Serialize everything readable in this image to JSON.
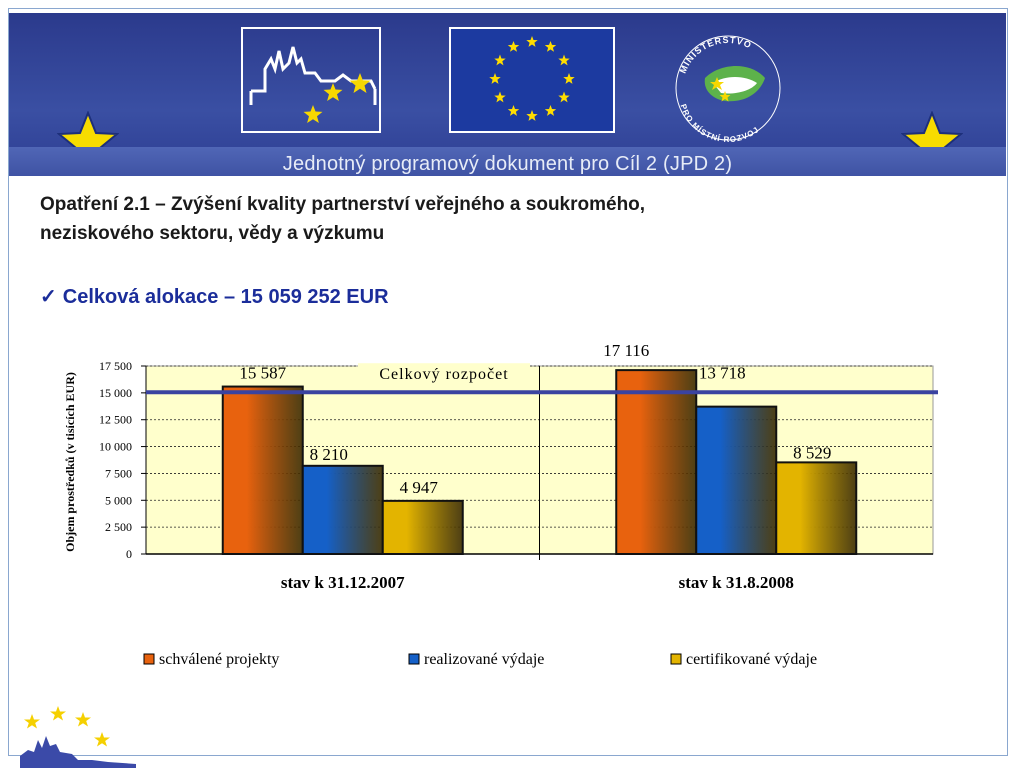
{
  "header": {
    "caption": "Jednotný programový dokument pro Cíl 2 (JPD 2)",
    "ministry_logo_text": "MINISTERSTVO PRO MÍSTNÍ ROZVOJ"
  },
  "heading": {
    "line1": "Opatření 2.1 – Zvýšení kvality partnerství veřejného a soukromého,",
    "line2": "neziskového sektoru, vědy a výzkumu"
  },
  "allocation": {
    "check_icon": "✓",
    "text": "Celková alokace – 15 059 252 EUR"
  },
  "chart_data": {
    "type": "bar",
    "ylabel": "Objem prostředků (v tisících EUR)",
    "ylim": [
      0,
      17500
    ],
    "yticks": [
      0,
      2500,
      5000,
      7500,
      10000,
      12500,
      15000,
      17500
    ],
    "ytick_labels": [
      "0",
      "2 500",
      "5 000",
      "7 500",
      "10 000",
      "12 500",
      "15 000",
      "17 500"
    ],
    "categories": [
      "stav k 31.12.2007",
      "stav k 31.8.2008"
    ],
    "series": [
      {
        "name": "schválené projekty",
        "values": [
          15587,
          17116
        ],
        "labels": [
          "15 587",
          "17 116"
        ],
        "color": "#e8620e"
      },
      {
        "name": "realizované výdaje",
        "values": [
          8210,
          13718
        ],
        "labels": [
          "8 210",
          "13 718"
        ],
        "color": "#1560c8"
      },
      {
        "name": "certifikované výdaje",
        "values": [
          4947,
          8529
        ],
        "labels": [
          "4 947",
          "8 529"
        ],
        "color": "#e3b400"
      }
    ],
    "reference_line": {
      "label": "Celkový rozpočet",
      "value": 15059,
      "color": "#3a43a0"
    },
    "plot_background": "#ffffcc",
    "grid": true,
    "legend_position": "bottom"
  }
}
